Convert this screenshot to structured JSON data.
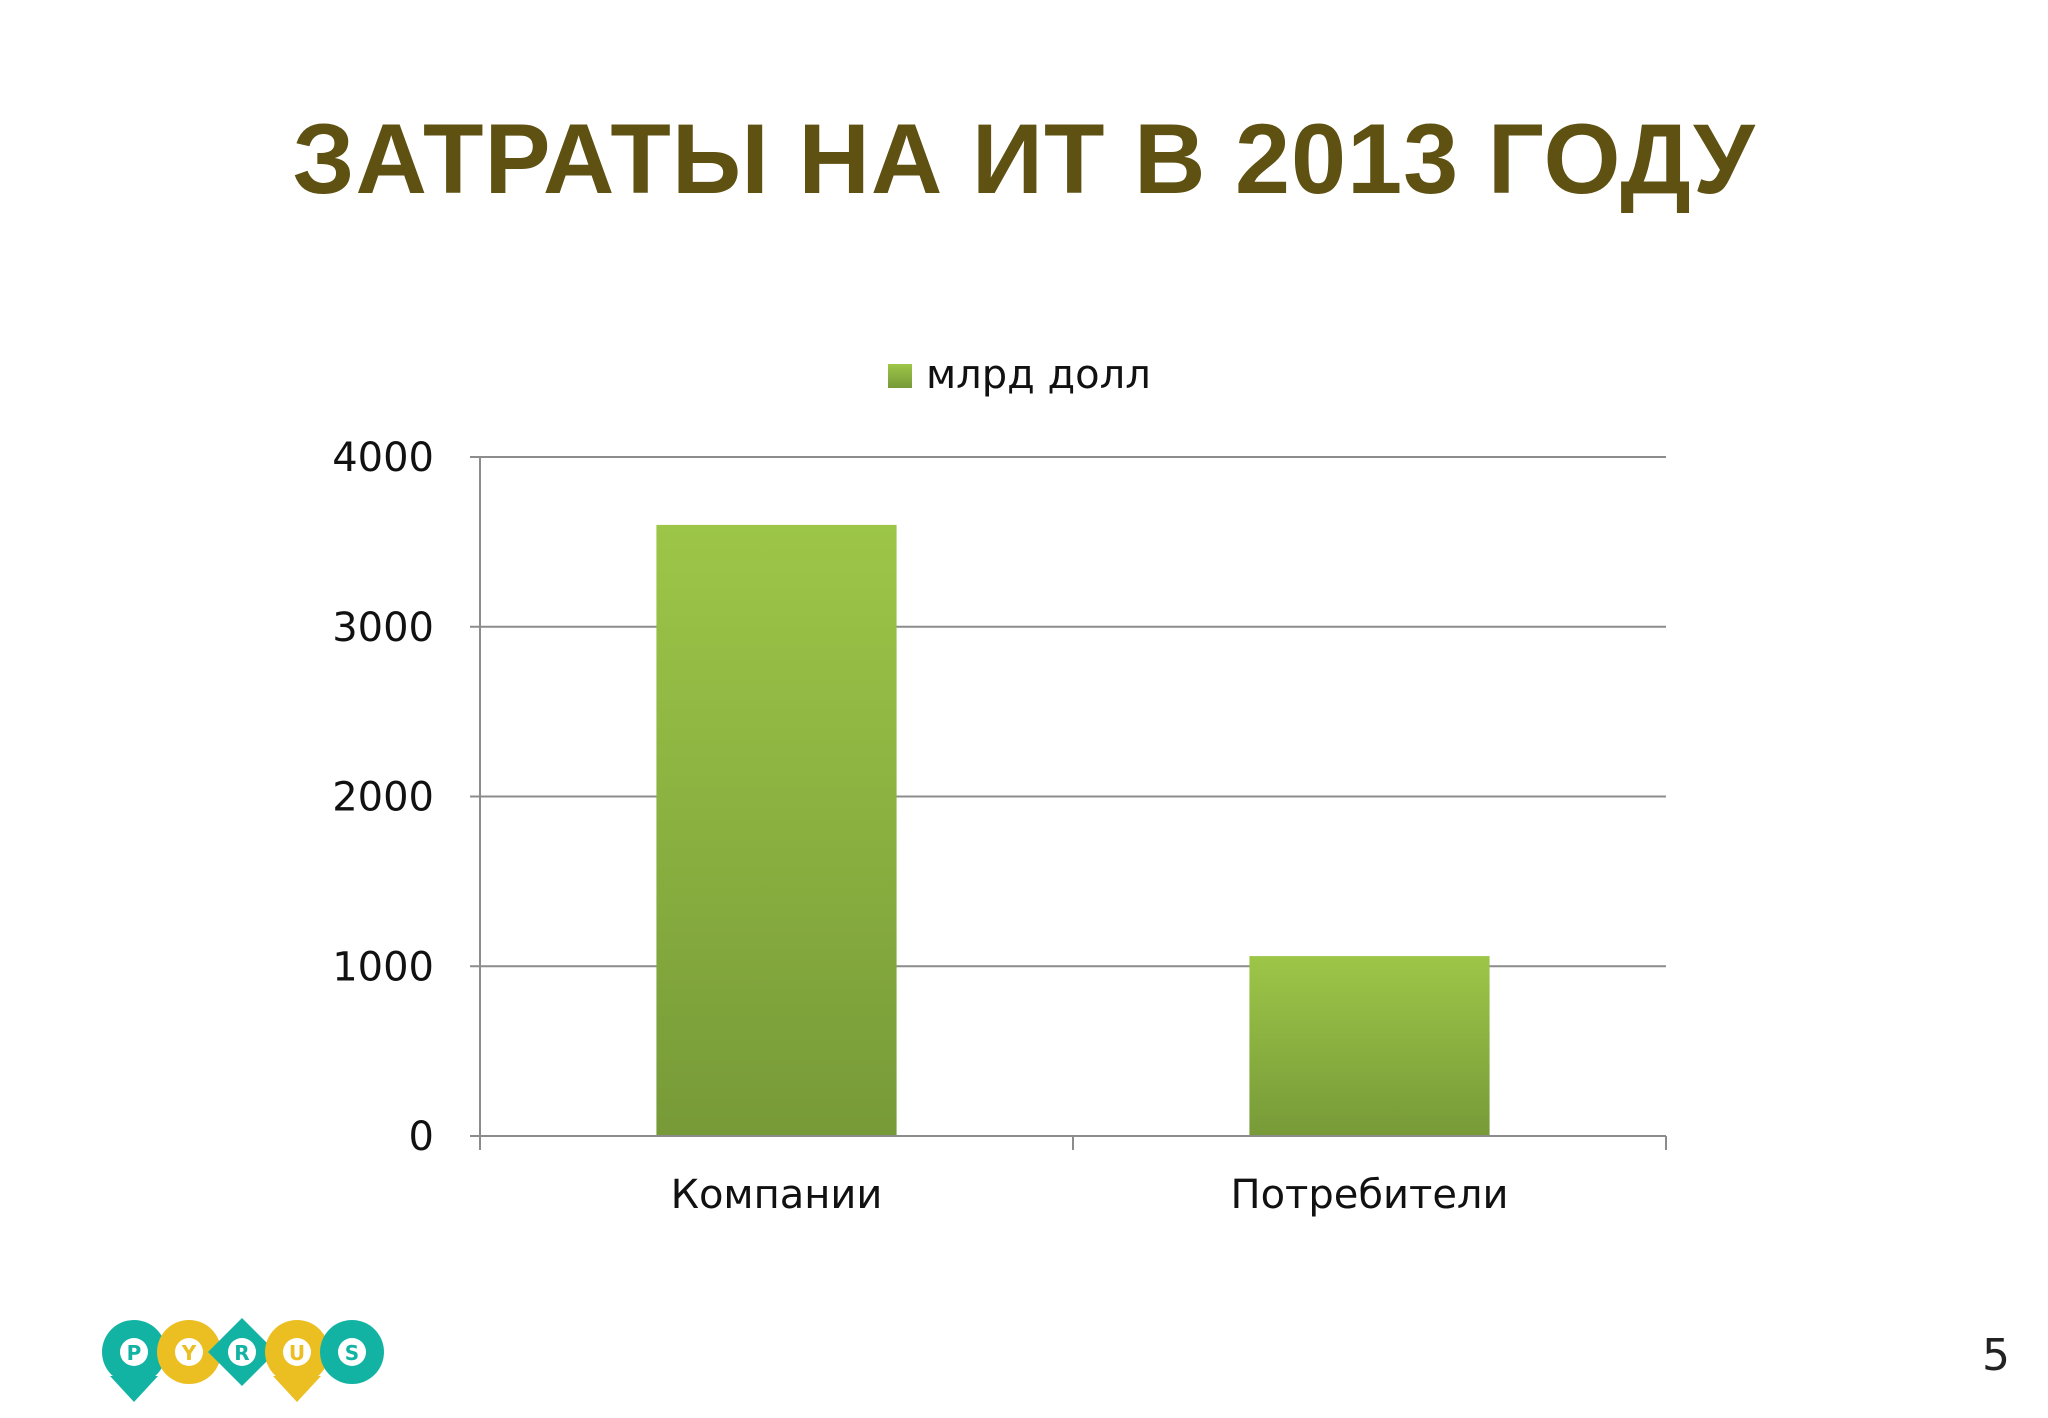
{
  "slide": {
    "title": "ЗАТРАТЫ НА ИТ В 2013 ГОДУ",
    "page_number": "5"
  },
  "logo": {
    "letters": [
      "P",
      "Y",
      "R",
      "U",
      "S"
    ],
    "colors": [
      "#13b3a4",
      "#ebbe22",
      "#13b3a4",
      "#ebbe22",
      "#13b3a4"
    ]
  },
  "chart_data": {
    "type": "bar",
    "categories": [
      "Компании",
      "Потребители"
    ],
    "series": [
      {
        "name": "млрд долл",
        "values": [
          3600,
          1060
        ]
      }
    ],
    "ylim": [
      0,
      4000
    ],
    "yticks": [
      "0",
      "1000",
      "2000",
      "3000",
      "4000"
    ],
    "grid": true,
    "legend": "top-center",
    "colors": {
      "bar_top": "#9dc648",
      "bar_bottom": "#779a38",
      "grid": "#8c8c8c",
      "axis_text": "#111111"
    }
  }
}
